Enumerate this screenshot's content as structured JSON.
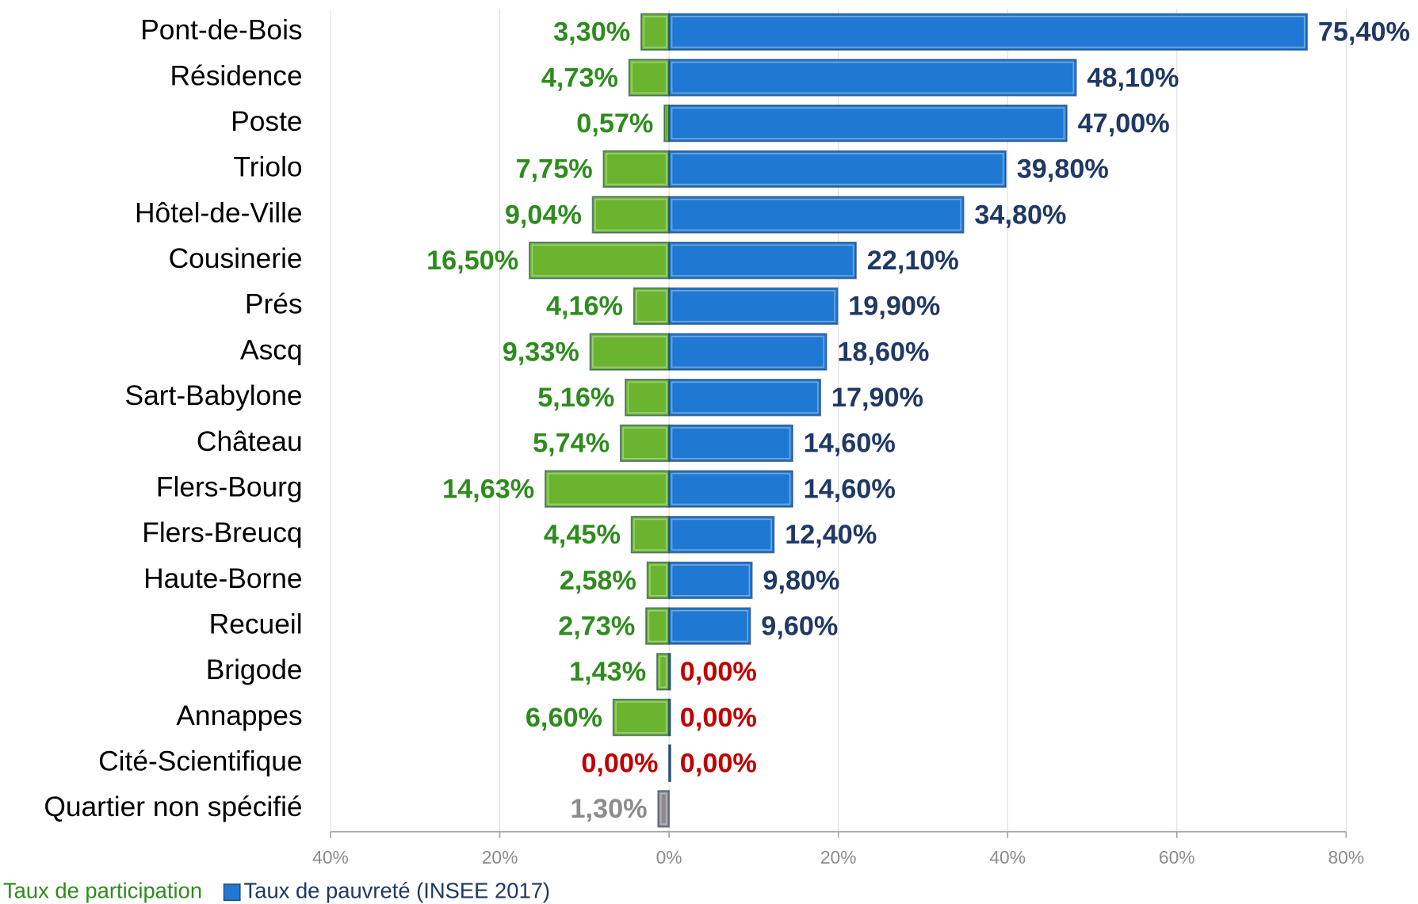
{
  "chart_data": {
    "type": "diverging-bar",
    "categories": [
      "Pont-de-Bois",
      "Résidence",
      "Poste",
      "Triolo",
      "Hôtel-de-Ville",
      "Cousinerie",
      "Prés",
      "Ascq",
      "Sart-Babylone",
      "Château",
      "Flers-Bourg",
      "Flers-Breucq",
      "Haute-Borne",
      "Recueil",
      "Brigode",
      "Annappes",
      "Cité-Scientifique",
      "Quartier non spécifié"
    ],
    "series": [
      {
        "name": "Taux de participation",
        "color": "#6ab42f",
        "label_color": "#2e8b1e",
        "colors": [
          "#6ab42f",
          "#6ab42f",
          "#6ab42f",
          "#6ab42f",
          "#6ab42f",
          "#6ab42f",
          "#6ab42f",
          "#6ab42f",
          "#6ab42f",
          "#6ab42f",
          "#6ab42f",
          "#6ab42f",
          "#6ab42f",
          "#6ab42f",
          "#6ab42f",
          "#6ab42f",
          "#6ab42f",
          "#8c8c8c"
        ],
        "label_colors": [
          "#2e8b1e",
          "#2e8b1e",
          "#2e8b1e",
          "#2e8b1e",
          "#2e8b1e",
          "#2e8b1e",
          "#2e8b1e",
          "#2e8b1e",
          "#2e8b1e",
          "#2e8b1e",
          "#2e8b1e",
          "#2e8b1e",
          "#2e8b1e",
          "#2e8b1e",
          "#2e8b1e",
          "#2e8b1e",
          "#c00000",
          "#8c8c8c"
        ],
        "values": [
          -3.3,
          -4.73,
          -0.57,
          -7.75,
          -9.04,
          -16.5,
          -4.16,
          -9.33,
          -5.16,
          -5.74,
          -14.63,
          -4.45,
          -2.58,
          -2.73,
          -1.43,
          -6.6,
          0,
          -1.3
        ],
        "value_labels": [
          "3,30%",
          "4,73%",
          "0,57%",
          "7,75%",
          "9,04%",
          "16,50%",
          "4,16%",
          "9,33%",
          "5,16%",
          "5,74%",
          "14,63%",
          "4,45%",
          "2,58%",
          "2,73%",
          "1,43%",
          "6,60%",
          "0,00%",
          "1,30%"
        ]
      },
      {
        "name": "Taux de pauvreté (INSEE 2017)",
        "color": "#1f78d1",
        "label_color": "#1f3864",
        "zero_label_color": "#c00000",
        "values": [
          75.4,
          48.1,
          47.0,
          39.8,
          34.8,
          22.1,
          19.9,
          18.6,
          17.9,
          14.6,
          14.6,
          12.4,
          9.8,
          9.6,
          0,
          0,
          0,
          null
        ],
        "value_labels": [
          "75,40%",
          "48,10%",
          "47,00%",
          "39,80%",
          "34,80%",
          "22,10%",
          "19,90%",
          "18,60%",
          "17,90%",
          "14,60%",
          "14,60%",
          "12,40%",
          "9,80%",
          "9,60%",
          "0,00%",
          "0,00%",
          "0,00%",
          null
        ]
      }
    ],
    "xlim": [
      -40,
      80
    ],
    "xticks": [
      {
        "value": -40,
        "label": "40%"
      },
      {
        "value": -20,
        "label": "20%"
      },
      {
        "value": 0,
        "label": "0%"
      },
      {
        "value": 20,
        "label": "20%"
      },
      {
        "value": 40,
        "label": "40%"
      },
      {
        "value": 60,
        "label": "60%"
      },
      {
        "value": 80,
        "label": "80%"
      }
    ],
    "grid": true,
    "legend": "bottom-left"
  }
}
